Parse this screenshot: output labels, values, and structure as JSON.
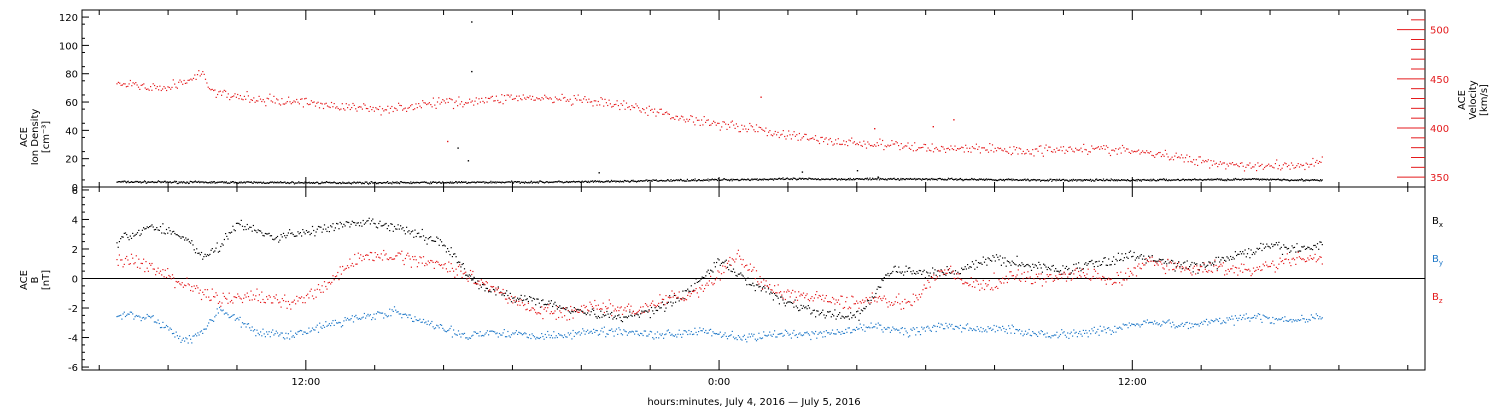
{
  "chart_data": [
    {
      "type": "scatter",
      "panel": "top",
      "ylabel_left": [
        "ACE",
        "Ion Density",
        "[cm⁻³]"
      ],
      "ylabel_right": [
        "ACE",
        "Velocity",
        "[km/s]"
      ],
      "y_left_lim": [
        0,
        125
      ],
      "y_left_ticks": [
        "0",
        "20",
        "40",
        "60",
        "80",
        "100",
        "120"
      ],
      "y_right_lim": [
        340,
        520
      ],
      "y_right_ticks": [
        "350",
        "400",
        "450",
        "500"
      ],
      "grid": false,
      "series": [
        {
          "axis": "left",
          "color": "#000000",
          "points": [
            [
              6.5,
              4
            ],
            [
              8,
              3.8
            ],
            [
              10,
              3.6
            ],
            [
              12,
              3.4
            ],
            [
              14,
              3.4
            ],
            [
              16,
              3.5
            ],
            [
              18,
              3.8
            ],
            [
              20,
              4
            ],
            [
              21,
              4.3
            ],
            [
              22,
              4.8
            ],
            [
              24,
              5.5
            ],
            [
              26,
              6
            ],
            [
              28,
              6
            ],
            [
              30,
              6
            ],
            [
              32,
              5.6
            ],
            [
              34,
              5.2
            ],
            [
              36,
              5.2
            ],
            [
              38,
              5.6
            ],
            [
              40,
              5.8
            ],
            [
              41.5,
              5
            ]
          ],
          "outliers": [
            [
              16.8,
              117
            ],
            [
              16.8,
              82
            ],
            [
              16.4,
              28
            ],
            [
              16.7,
              19
            ],
            [
              20.5,
              10.5
            ],
            [
              26.4,
              11
            ],
            [
              28,
              12
            ],
            [
              28.6,
              7.5
            ]
          ]
        },
        {
          "axis": "right",
          "color": "#e41a1c",
          "points": [
            [
              6.5,
              444
            ],
            [
              7,
              445
            ],
            [
              7.5,
              440
            ],
            [
              8,
              442
            ],
            [
              8.5,
              448
            ],
            [
              9,
              456
            ],
            [
              9.3,
              436
            ],
            [
              10,
              432
            ],
            [
              11,
              428
            ],
            [
              12,
              427
            ],
            [
              13,
              422
            ],
            [
              14,
              420
            ],
            [
              15,
              422
            ],
            [
              16,
              427
            ],
            [
              17,
              428
            ],
            [
              18,
              432
            ],
            [
              19,
              430
            ],
            [
              20,
              428
            ],
            [
              21,
              424
            ],
            [
              22,
              418
            ],
            [
              23,
              410
            ],
            [
              24,
              405
            ],
            [
              25,
              400
            ],
            [
              26,
              393
            ],
            [
              27,
              388
            ],
            [
              28,
              385
            ],
            [
              29,
              383
            ],
            [
              30,
              380
            ],
            [
              31,
              380
            ],
            [
              32,
              379
            ],
            [
              33,
              377
            ],
            [
              34,
              380
            ],
            [
              35,
              379
            ],
            [
              36,
              377
            ],
            [
              37,
              372
            ],
            [
              38,
              367
            ],
            [
              39,
              363
            ],
            [
              40,
              362
            ],
            [
              41,
              363
            ],
            [
              41.5,
              367
            ]
          ],
          "outliers": [
            [
              16.1,
              387
            ],
            [
              25.2,
              432
            ],
            [
              28.5,
              400
            ],
            [
              30.2,
              402
            ],
            [
              30.8,
              409
            ]
          ]
        }
      ]
    },
    {
      "type": "scatter",
      "panel": "bottom",
      "ylabel": [
        "ACE",
        "B",
        "[nT]"
      ],
      "ylim": [
        -6.2,
        6.2
      ],
      "y_ticks": [
        "-6",
        "-4",
        "-2",
        "0",
        "2",
        "4",
        "6"
      ],
      "zero_line": true,
      "grid": false,
      "legend_position": "right",
      "series": [
        {
          "name": "Bx",
          "label": "B",
          "sub": "x",
          "color": "#000000",
          "points": [
            [
              6.5,
              2.5
            ],
            [
              7.5,
              3.6
            ],
            [
              8.5,
              2.8
            ],
            [
              9,
              1.5
            ],
            [
              9.5,
              2.2
            ],
            [
              10,
              3.8
            ],
            [
              11,
              2.8
            ],
            [
              12,
              3.2
            ],
            [
              13,
              3.6
            ],
            [
              14,
              3.8
            ],
            [
              15,
              3.2
            ],
            [
              16,
              2.4
            ],
            [
              17,
              -0.5
            ],
            [
              18,
              -1.2
            ],
            [
              19,
              -1.6
            ],
            [
              20,
              -2.2
            ],
            [
              21,
              -2.6
            ],
            [
              22,
              -2.2
            ],
            [
              23,
              -1
            ],
            [
              24,
              1.2
            ],
            [
              25,
              -0.4
            ],
            [
              26,
              -1.6
            ],
            [
              27,
              -2.4
            ],
            [
              28,
              -2.6
            ],
            [
              29,
              0.6
            ],
            [
              30,
              0.4
            ],
            [
              31,
              0.6
            ],
            [
              32,
              1.4
            ],
            [
              33,
              0.9
            ],
            [
              34,
              0.6
            ],
            [
              35,
              1.1
            ],
            [
              36,
              1.6
            ],
            [
              37,
              1.1
            ],
            [
              38,
              0.8
            ],
            [
              39,
              1.6
            ],
            [
              40,
              2.2
            ],
            [
              41,
              2
            ],
            [
              41.5,
              2.4
            ]
          ]
        },
        {
          "name": "By",
          "label": "B",
          "sub": "y",
          "color": "#1f78c8",
          "points": [
            [
              6.5,
              -2.4
            ],
            [
              7.5,
              -2.6
            ],
            [
              8.5,
              -4.2
            ],
            [
              9,
              -3.5
            ],
            [
              9.5,
              -2
            ],
            [
              10.5,
              -3.6
            ],
            [
              11.5,
              -3.8
            ],
            [
              12.5,
              -3.2
            ],
            [
              13.5,
              -2.6
            ],
            [
              14.5,
              -2.2
            ],
            [
              15.5,
              -3
            ],
            [
              16.5,
              -3.8
            ],
            [
              17.5,
              -3.6
            ],
            [
              18.5,
              -3.8
            ],
            [
              19.5,
              -3.8
            ],
            [
              20.5,
              -3.5
            ],
            [
              21.5,
              -3.6
            ],
            [
              22.5,
              -3.8
            ],
            [
              23.5,
              -3.4
            ],
            [
              24.5,
              -4
            ],
            [
              25.5,
              -3.8
            ],
            [
              26.5,
              -3.8
            ],
            [
              27.5,
              -3.6
            ],
            [
              28.5,
              -3.2
            ],
            [
              29.5,
              -3.6
            ],
            [
              30.5,
              -3.2
            ],
            [
              31.5,
              -3.4
            ],
            [
              32.5,
              -3.4
            ],
            [
              33.5,
              -3.8
            ],
            [
              34.5,
              -3.6
            ],
            [
              35.5,
              -3.4
            ],
            [
              36.5,
              -2.8
            ],
            [
              37.5,
              -3.2
            ],
            [
              38.5,
              -2.8
            ],
            [
              39.5,
              -2.6
            ],
            [
              40.5,
              -2.8
            ],
            [
              41.5,
              -2.6
            ]
          ]
        },
        {
          "name": "Bz",
          "label": "B",
          "sub": "z",
          "color": "#e41a1c",
          "points": [
            [
              6.5,
              1.4
            ],
            [
              7.5,
              0.8
            ],
            [
              8.5,
              -0.4
            ],
            [
              9.5,
              -1.4
            ],
            [
              10.5,
              -1.2
            ],
            [
              11.5,
              -1.6
            ],
            [
              12.5,
              -0.6
            ],
            [
              13.5,
              1.4
            ],
            [
              14.5,
              1.6
            ],
            [
              15.5,
              1.2
            ],
            [
              16.5,
              0.6
            ],
            [
              17.5,
              -0.8
            ],
            [
              18.5,
              -2
            ],
            [
              19.5,
              -2.4
            ],
            [
              20.5,
              -1.8
            ],
            [
              21.5,
              -2.2
            ],
            [
              22.5,
              -1.4
            ],
            [
              23.5,
              -0.8
            ],
            [
              24.5,
              1.6
            ],
            [
              25.5,
              -0.8
            ],
            [
              26.5,
              -1.2
            ],
            [
              27.5,
              -1.6
            ],
            [
              28.5,
              -1.4
            ],
            [
              29.5,
              -1.6
            ],
            [
              30.5,
              0.6
            ],
            [
              31.5,
              -0.6
            ],
            [
              32.5,
              0.2
            ],
            [
              33.5,
              0
            ],
            [
              34.5,
              0.4
            ],
            [
              35.5,
              -0.2
            ],
            [
              36.5,
              1.2
            ],
            [
              37.5,
              0.6
            ],
            [
              38.5,
              0.8
            ],
            [
              39.5,
              0.6
            ],
            [
              40.5,
              1.2
            ],
            [
              41.5,
              1.4
            ]
          ]
        }
      ]
    }
  ],
  "x_axis": {
    "xlim": [
      5.5,
      44.5
    ],
    "major_ticks": [
      {
        "x": 12,
        "label": "12:00"
      },
      {
        "x": 24,
        "label": "0:00"
      },
      {
        "x": 36,
        "label": "12:00"
      }
    ],
    "minor_ticks": [
      6,
      8,
      10,
      14,
      16,
      18,
      20,
      22,
      26,
      28,
      30,
      32,
      34,
      38,
      40,
      42,
      44
    ],
    "caption": "hours:minutes, July  4, 2016 — July  5, 2016"
  },
  "colors": {
    "black": "#000000",
    "red": "#e41a1c",
    "blue": "#1f78c8",
    "axis": "#000000"
  }
}
